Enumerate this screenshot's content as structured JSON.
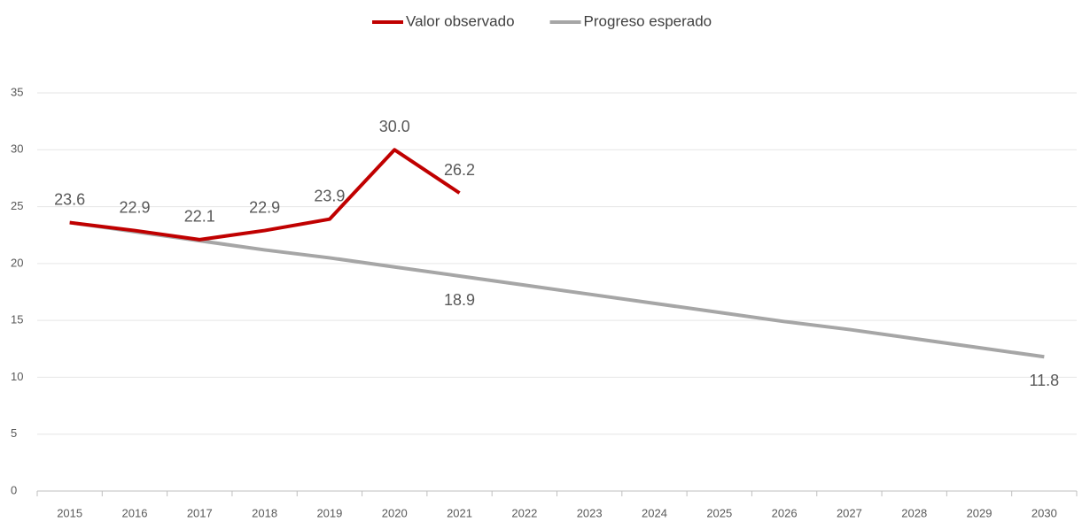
{
  "chart_data": {
    "type": "line",
    "categories": [
      "2015",
      "2016",
      "2017",
      "2018",
      "2019",
      "2020",
      "2021",
      "2022",
      "2023",
      "2024",
      "2025",
      "2026",
      "2027",
      "2028",
      "2029",
      "2030"
    ],
    "series": [
      {
        "name": "Valor observado",
        "color": "#c00000",
        "values": [
          23.6,
          22.9,
          22.1,
          22.9,
          23.9,
          30.0,
          26.2,
          null,
          null,
          null,
          null,
          null,
          null,
          null,
          null,
          null
        ],
        "value_labels": [
          "23.6",
          "22.9",
          "22.1",
          "22.9",
          "23.9",
          "30.0",
          "26.2",
          null,
          null,
          null,
          null,
          null,
          null,
          null,
          null,
          null
        ],
        "label_position": "above"
      },
      {
        "name": "Progreso esperado",
        "color": "#a6a6a6",
        "values": [
          23.6,
          22.8,
          22.0,
          21.2,
          20.5,
          19.7,
          18.9,
          18.1,
          17.3,
          16.5,
          15.7,
          14.9,
          14.2,
          13.4,
          12.6,
          11.8
        ],
        "value_labels": [
          null,
          null,
          null,
          null,
          null,
          null,
          "18.9",
          null,
          null,
          null,
          null,
          null,
          null,
          null,
          null,
          "11.8"
        ],
        "label_position": "below"
      }
    ],
    "ylim": [
      0,
      35
    ],
    "yticks": [
      0,
      5,
      10,
      15,
      20,
      25,
      30,
      35
    ],
    "grid": true,
    "legend": "top"
  }
}
